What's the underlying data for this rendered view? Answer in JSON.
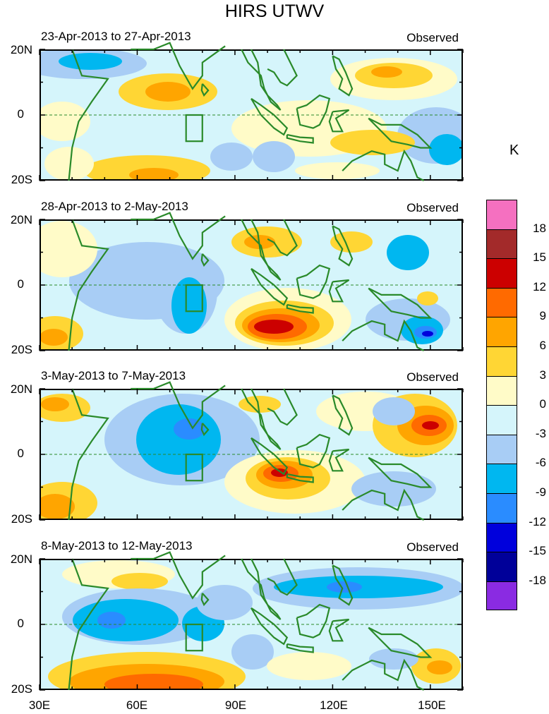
{
  "figure": {
    "title": "HIRS UTWV"
  },
  "panels": [
    {
      "title": "23-Apr-2013 to 27-Apr-2013",
      "label": "Observed"
    },
    {
      "title": "28-Apr-2013 to 2-May-2013",
      "label": "Observed"
    },
    {
      "title": "3-May-2013 to 7-May-2013",
      "label": "Observed"
    },
    {
      "title": "8-May-2013 to 12-May-2013",
      "label": "Observed"
    }
  ],
  "axes": {
    "lat_labels": [
      "20N",
      "0",
      "20S"
    ],
    "lon_labels": [
      "30E",
      "60E",
      "90E",
      "120E",
      "150E"
    ]
  },
  "colorbar": {
    "unit": "K",
    "labels": [
      "18",
      "15",
      "12",
      "9",
      "6",
      "3",
      "0",
      "-3",
      "-6",
      "-9",
      "-12",
      "-15",
      "-18"
    ],
    "colors": [
      "#f570c0",
      "#a32a2a",
      "#cc0000",
      "#ff6a00",
      "#ffa500",
      "#ffd634",
      "#fffbc8",
      "#d5f5fb",
      "#a8cdf5",
      "#00b7f0",
      "#2a8cff",
      "#0000dc",
      "#000099",
      "#8a2be2"
    ]
  },
  "colors": {
    "land_outline": "#2a8a2a",
    "equator": "#2a8a2a"
  }
}
